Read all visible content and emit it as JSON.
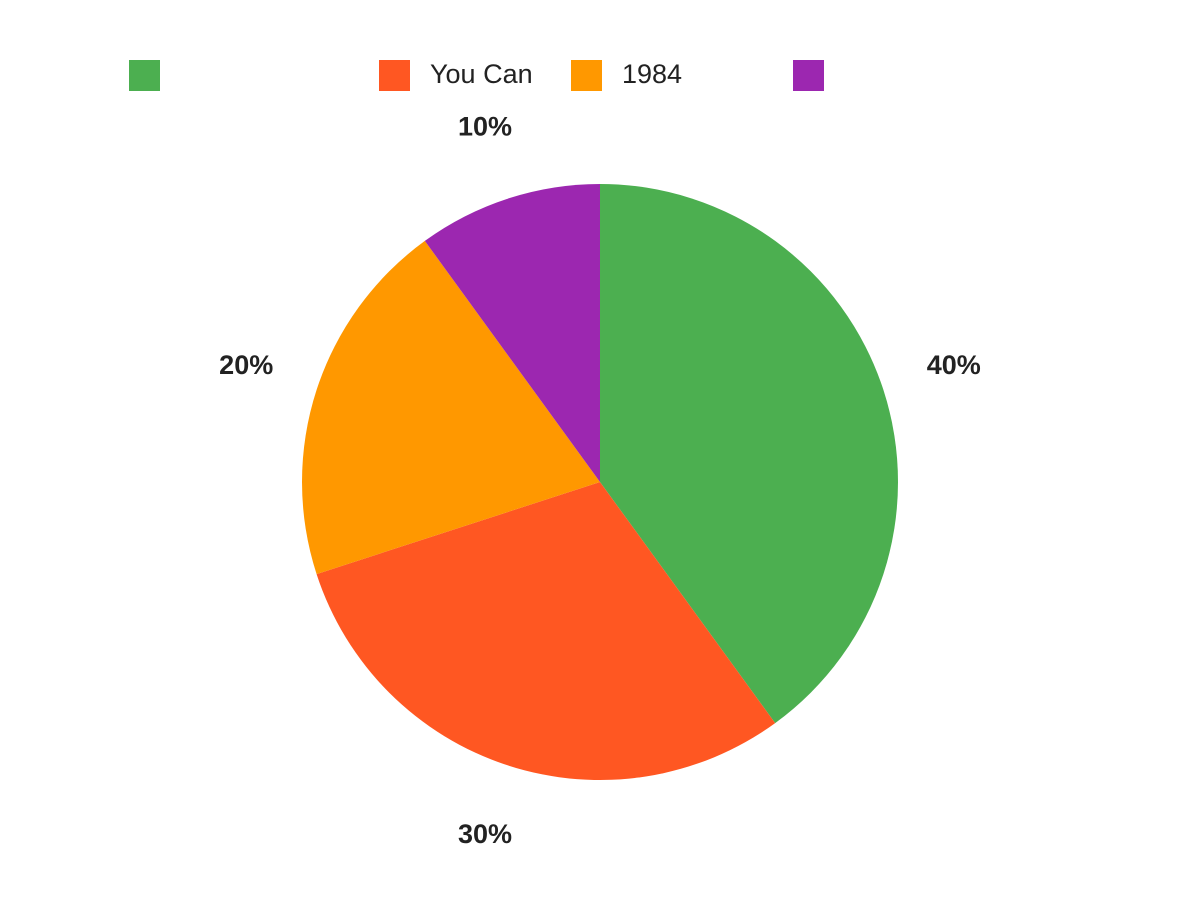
{
  "chart_data": {
    "type": "pie",
    "categories": [
      null,
      "You Can",
      "1984",
      null
    ],
    "values": [
      40,
      30,
      20,
      10
    ],
    "value_labels": [
      "40%",
      "30%",
      "20%",
      "10%"
    ],
    "colors": [
      "#4caf50",
      "#ff5722",
      "#ff9800",
      "#9c27b0"
    ]
  }
}
